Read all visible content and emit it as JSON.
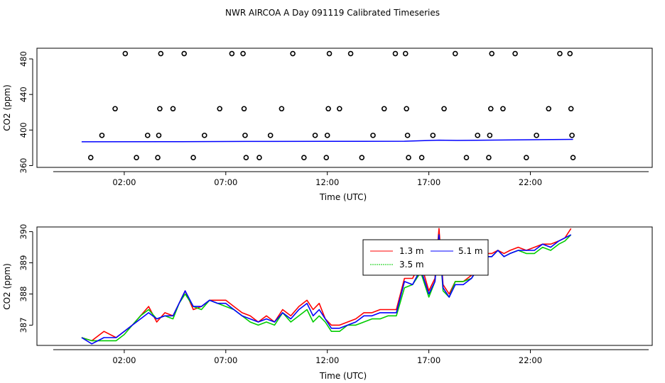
{
  "chart_data": [
    {
      "type": "scatter",
      "title": "NWR AIRCOA A  Day 091119  Calibrated Timeseries",
      "xlabel": "Time (UTC)",
      "ylabel": "CO2 (ppm)",
      "xlim": [
        -2.3,
        28.0
      ],
      "ylim": [
        358,
        492
      ],
      "x_ticks": [
        2,
        7,
        12,
        17,
        22
      ],
      "x_tick_labels": [
        "02:00",
        "07:00",
        "12:00",
        "17:00",
        "22:00"
      ],
      "y_ticks": [
        360,
        400,
        440,
        480
      ],
      "y_tick_labels": [
        "360",
        "400",
        "440",
        "480"
      ],
      "points": [
        {
          "x": 0.35,
          "y": 369
        },
        {
          "x": 0.9,
          "y": 394
        },
        {
          "x": 1.55,
          "y": 424
        },
        {
          "x": 2.05,
          "y": 486
        },
        {
          "x": 2.6,
          "y": 369
        },
        {
          "x": 3.15,
          "y": 394
        },
        {
          "x": 3.65,
          "y": 369
        },
        {
          "x": 3.7,
          "y": 394
        },
        {
          "x": 3.75,
          "y": 424
        },
        {
          "x": 3.8,
          "y": 486
        },
        {
          "x": 4.4,
          "y": 424
        },
        {
          "x": 4.95,
          "y": 486
        },
        {
          "x": 5.4,
          "y": 369
        },
        {
          "x": 5.95,
          "y": 394
        },
        {
          "x": 6.7,
          "y": 424
        },
        {
          "x": 7.3,
          "y": 486
        },
        {
          "x": 7.85,
          "y": 486
        },
        {
          "x": 7.9,
          "y": 424
        },
        {
          "x": 7.95,
          "y": 394
        },
        {
          "x": 8.0,
          "y": 369
        },
        {
          "x": 8.65,
          "y": 369
        },
        {
          "x": 9.2,
          "y": 394
        },
        {
          "x": 9.75,
          "y": 424
        },
        {
          "x": 10.3,
          "y": 486
        },
        {
          "x": 10.85,
          "y": 369
        },
        {
          "x": 11.4,
          "y": 394
        },
        {
          "x": 11.95,
          "y": 369
        },
        {
          "x": 12.0,
          "y": 394
        },
        {
          "x": 12.05,
          "y": 424
        },
        {
          "x": 12.1,
          "y": 486
        },
        {
          "x": 12.6,
          "y": 424
        },
        {
          "x": 13.15,
          "y": 486
        },
        {
          "x": 13.7,
          "y": 369
        },
        {
          "x": 14.25,
          "y": 394
        },
        {
          "x": 14.8,
          "y": 424
        },
        {
          "x": 15.35,
          "y": 486
        },
        {
          "x": 15.85,
          "y": 486
        },
        {
          "x": 15.9,
          "y": 424
        },
        {
          "x": 15.95,
          "y": 394
        },
        {
          "x": 16.0,
          "y": 369
        },
        {
          "x": 16.65,
          "y": 369
        },
        {
          "x": 17.2,
          "y": 394
        },
        {
          "x": 17.75,
          "y": 424
        },
        {
          "x": 18.3,
          "y": 486
        },
        {
          "x": 18.85,
          "y": 369
        },
        {
          "x": 19.4,
          "y": 394
        },
        {
          "x": 19.95,
          "y": 369
        },
        {
          "x": 20.0,
          "y": 394
        },
        {
          "x": 20.05,
          "y": 424
        },
        {
          "x": 20.1,
          "y": 486
        },
        {
          "x": 20.65,
          "y": 424
        },
        {
          "x": 21.25,
          "y": 486
        },
        {
          "x": 21.8,
          "y": 369
        },
        {
          "x": 22.3,
          "y": 394
        },
        {
          "x": 22.9,
          "y": 424
        },
        {
          "x": 23.45,
          "y": 486
        },
        {
          "x": 23.95,
          "y": 486
        },
        {
          "x": 24.0,
          "y": 424
        },
        {
          "x": 24.05,
          "y": 394
        },
        {
          "x": 24.1,
          "y": 369
        }
      ],
      "baseline": {
        "x": [
          -0.1,
          4,
          8,
          12,
          15.8,
          17.5,
          18.4,
          24.1
        ],
        "y": [
          386.8,
          386.9,
          387.2,
          387.3,
          387.4,
          388.6,
          388.3,
          389.5
        ]
      }
    },
    {
      "type": "line",
      "xlabel": "Time (UTC)",
      "ylabel": "CO2 (ppm)",
      "xlim": [
        -2.3,
        28.0
      ],
      "ylim": [
        386.35,
        390.15
      ],
      "x_ticks": [
        2,
        7,
        12,
        17,
        22
      ],
      "x_tick_labels": [
        "02:00",
        "07:00",
        "12:00",
        "17:00",
        "22:00"
      ],
      "y_ticks": [
        387,
        388,
        389,
        390
      ],
      "y_tick_labels": [
        "387",
        "388",
        "389",
        "390"
      ],
      "legend": {
        "position": "top-center",
        "entries": [
          {
            "label": "1.3 m",
            "color": "#ff0000"
          },
          {
            "label": "3.5 m",
            "color": "#00cc00"
          },
          {
            "label": "5.1 m",
            "color": "#0000ff"
          }
        ]
      },
      "x": [
        -0.1,
        0.4,
        1.0,
        1.6,
        2.0,
        2.4,
        2.8,
        3.2,
        3.6,
        4.0,
        4.4,
        4.7,
        5.0,
        5.4,
        5.8,
        6.2,
        6.6,
        7.0,
        7.4,
        7.8,
        8.2,
        8.6,
        9.0,
        9.4,
        9.8,
        10.2,
        10.6,
        11.0,
        11.3,
        11.6,
        11.9,
        12.2,
        12.6,
        13.0,
        13.4,
        13.8,
        14.2,
        14.6,
        15.0,
        15.4,
        15.8,
        16.2,
        16.6,
        17.0,
        17.3,
        17.5,
        17.7,
        18.0,
        18.3,
        18.7,
        19.1,
        19.5,
        19.8,
        20.1,
        20.4,
        20.7,
        21.0,
        21.4,
        21.8,
        22.2,
        22.6,
        23.0,
        23.4,
        23.7,
        24.0
      ],
      "series": [
        {
          "name": "1.3 m",
          "color": "#ff0000",
          "values": [
            386.6,
            386.5,
            386.8,
            386.6,
            386.8,
            387.0,
            387.3,
            387.6,
            387.1,
            387.4,
            387.3,
            387.7,
            388.1,
            387.5,
            387.6,
            387.8,
            387.8,
            387.8,
            387.6,
            387.4,
            387.3,
            387.1,
            387.3,
            387.1,
            387.5,
            387.3,
            387.6,
            387.8,
            387.5,
            387.7,
            387.2,
            387.0,
            387.0,
            387.1,
            387.2,
            387.4,
            387.4,
            387.5,
            387.5,
            387.5,
            388.5,
            388.5,
            389.0,
            388.1,
            388.5,
            390.1,
            388.3,
            388.0,
            388.4,
            388.4,
            388.6,
            388.9,
            389.3,
            389.3,
            389.4,
            389.3,
            389.4,
            389.5,
            389.4,
            389.5,
            389.6,
            389.6,
            389.7,
            389.8,
            390.1
          ]
        },
        {
          "name": "3.5 m",
          "color": "#00cc00",
          "values": [
            386.6,
            386.5,
            386.5,
            386.5,
            386.7,
            387.0,
            387.3,
            387.5,
            387.2,
            387.3,
            387.2,
            387.7,
            388.0,
            387.6,
            387.5,
            387.8,
            387.7,
            387.6,
            387.5,
            387.3,
            387.1,
            387.0,
            387.1,
            387.0,
            387.4,
            387.1,
            387.3,
            387.5,
            387.1,
            387.3,
            387.1,
            386.8,
            386.8,
            387.0,
            387.0,
            387.1,
            387.2,
            387.2,
            387.3,
            387.3,
            388.2,
            388.3,
            388.7,
            387.9,
            388.4,
            389.9,
            388.1,
            387.9,
            388.4,
            388.4,
            388.5,
            388.9,
            389.2,
            389.2,
            389.4,
            389.2,
            389.3,
            389.4,
            389.3,
            389.3,
            389.5,
            389.4,
            389.6,
            389.7,
            389.9
          ]
        },
        {
          "name": "5.1 m",
          "color": "#0000ff",
          "values": [
            386.6,
            386.4,
            386.6,
            386.6,
            386.8,
            387.0,
            387.2,
            387.4,
            387.2,
            387.3,
            387.3,
            387.7,
            388.1,
            387.6,
            387.6,
            387.8,
            387.7,
            387.7,
            387.5,
            387.3,
            387.2,
            387.1,
            387.2,
            387.1,
            387.4,
            387.2,
            387.5,
            387.7,
            387.3,
            387.5,
            387.2,
            386.9,
            386.9,
            387.0,
            387.1,
            387.3,
            387.3,
            387.4,
            387.4,
            387.4,
            388.4,
            388.3,
            388.8,
            388.0,
            388.4,
            389.9,
            388.2,
            387.9,
            388.3,
            388.3,
            388.5,
            388.9,
            389.2,
            389.2,
            389.4,
            389.2,
            389.3,
            389.4,
            389.4,
            389.4,
            389.6,
            389.5,
            389.7,
            389.8,
            389.9
          ]
        }
      ]
    }
  ]
}
